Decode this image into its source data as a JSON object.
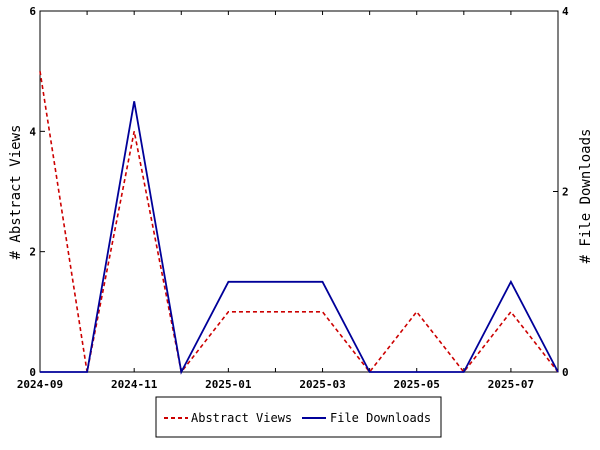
{
  "chart_data": {
    "type": "line",
    "x": [
      "2024-09",
      "2024-10",
      "2024-11",
      "2024-12",
      "2025-01",
      "2025-02",
      "2025-03",
      "2025-04",
      "2025-05",
      "2025-06",
      "2025-07",
      "2025-08"
    ],
    "x_tick_labels": [
      "2024-09",
      "2024-11",
      "2025-01",
      "2025-03",
      "2025-05",
      "2025-07"
    ],
    "series": [
      {
        "name": "Abstract Views",
        "axis": "left",
        "color": "#cc0000",
        "dash": "dashed",
        "values": [
          5,
          0,
          4,
          0,
          1,
          1,
          1,
          0,
          1,
          0,
          1,
          0
        ]
      },
      {
        "name": "File Downloads",
        "axis": "right",
        "color": "#000099",
        "dash": "solid",
        "values": [
          0,
          0,
          3,
          0,
          1,
          1,
          1,
          0,
          0,
          0,
          1,
          0
        ]
      }
    ],
    "y_left": {
      "label": "# Abstract Views",
      "range": [
        0,
        6
      ],
      "ticks": [
        "0",
        "2",
        "4",
        "6"
      ]
    },
    "y_right": {
      "label": "# File Downloads",
      "range": [
        0,
        4
      ],
      "ticks": [
        "0",
        "2",
        "4"
      ]
    },
    "grid": false,
    "legend_position": "bottom"
  }
}
